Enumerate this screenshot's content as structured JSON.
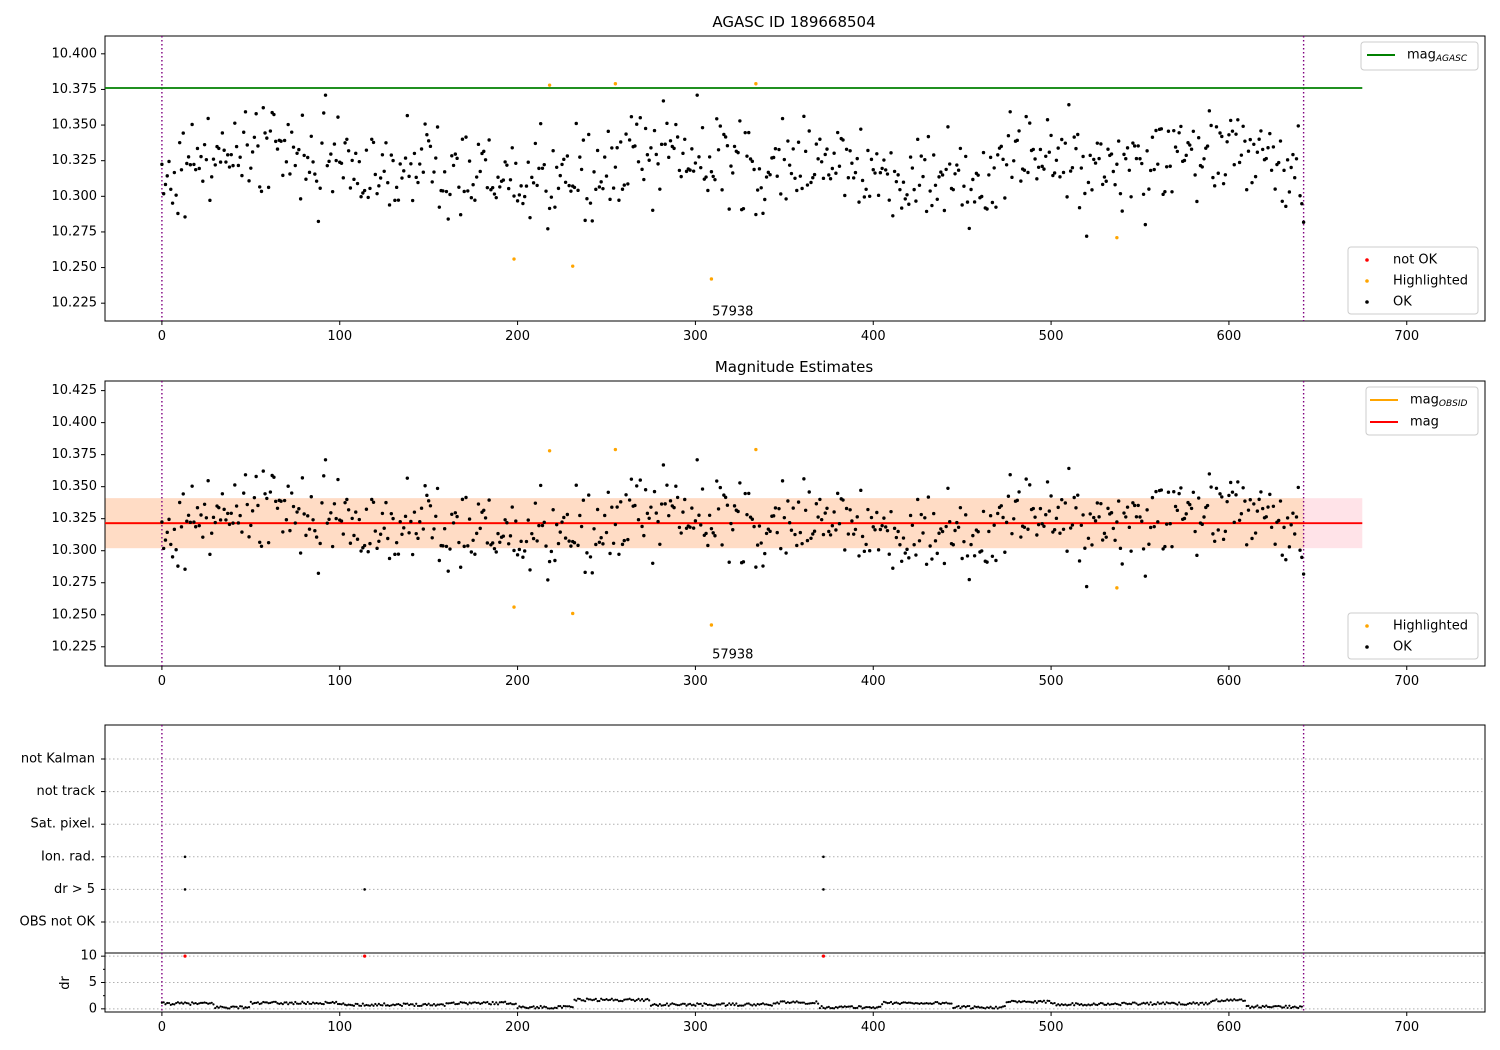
{
  "chart_data": [
    {
      "type": "scatter",
      "title": "AGASC ID 189668504",
      "xlim": [
        -32,
        744
      ],
      "ylim": [
        10.2125,
        10.4125
      ],
      "xticks": [
        0,
        100,
        200,
        300,
        400,
        500,
        600,
        700
      ],
      "yticks": [
        10.225,
        10.25,
        10.275,
        10.3,
        10.325,
        10.35,
        10.375,
        10.4
      ],
      "vlines": [
        0,
        642
      ],
      "hline": {
        "name": "mag",
        "sub": "AGASC",
        "y": 10.376,
        "x": [
          -32,
          675
        ],
        "color": "#008000"
      },
      "annotation": {
        "text": "57938",
        "x": 321,
        "y": 10.219
      },
      "highlighted": [
        {
          "x": 198,
          "y": 10.256
        },
        {
          "x": 218,
          "y": 10.378
        },
        {
          "x": 231,
          "y": 10.251
        },
        {
          "x": 255,
          "y": 10.379
        },
        {
          "x": 309,
          "y": 10.242
        },
        {
          "x": 334,
          "y": 10.379
        },
        {
          "x": 537,
          "y": 10.271
        }
      ],
      "legend_upper": [
        {
          "label": "mag",
          "sub": "AGASC",
          "color": "#008000",
          "marker": "line"
        }
      ],
      "legend_lower": [
        {
          "label": "not OK",
          "color": "#ff0000",
          "marker": "dot"
        },
        {
          "label": "Highlighted",
          "color": "#ffa500",
          "marker": "dot"
        },
        {
          "label": "OK",
          "color": "#000000",
          "marker": "dot"
        }
      ]
    },
    {
      "type": "scatter",
      "title": "Magnitude Estimates",
      "xlim": [
        -32,
        744
      ],
      "ylim": [
        10.21,
        10.4325
      ],
      "xticks": [
        0,
        100,
        200,
        300,
        400,
        500,
        600,
        700
      ],
      "yticks": [
        10.225,
        10.25,
        10.275,
        10.3,
        10.325,
        10.35,
        10.375,
        10.4,
        10.425
      ],
      "vlines": [
        0,
        642
      ],
      "mean": {
        "y": 10.3215,
        "x": [
          -32,
          675
        ],
        "color": "#ff0000"
      },
      "obsid": {
        "y": 10.3215,
        "x": [
          -32,
          642
        ],
        "color": "#ffa500"
      },
      "band_outer": {
        "y0": 10.302,
        "y1": 10.341,
        "x": [
          -32,
          675
        ],
        "color": "#ffc0cb"
      },
      "band_inner": {
        "y0": 10.302,
        "y1": 10.341,
        "x": [
          -32,
          642
        ],
        "color": "#ffdab9"
      },
      "annotation": {
        "text": "57938",
        "x": 321,
        "y": 10.219
      },
      "highlighted": [
        {
          "x": 198,
          "y": 10.256
        },
        {
          "x": 218,
          "y": 10.378
        },
        {
          "x": 231,
          "y": 10.251
        },
        {
          "x": 255,
          "y": 10.379
        },
        {
          "x": 309,
          "y": 10.242
        },
        {
          "x": 334,
          "y": 10.379
        },
        {
          "x": 537,
          "y": 10.271
        }
      ],
      "legend_upper": [
        {
          "label": "mag",
          "sub": "OBSID",
          "color": "#ffa500",
          "marker": "line"
        },
        {
          "label": "mag",
          "sub": "",
          "color": "#ff0000",
          "marker": "line"
        }
      ],
      "legend_lower": [
        {
          "label": "Highlighted",
          "color": "#ffa500",
          "marker": "dot"
        },
        {
          "label": "OK",
          "color": "#000000",
          "marker": "dot"
        }
      ]
    },
    {
      "type": "scatter",
      "title": "",
      "xlim": [
        -32,
        744
      ],
      "xticks": [
        0,
        100,
        200,
        300,
        400,
        500,
        600,
        700
      ],
      "vlines": [
        0,
        642
      ],
      "flag_labels": [
        "not Kalman",
        "not track",
        "Sat. pixel.",
        "Ion. rad.",
        "dr > 5",
        "OBS not OK"
      ],
      "flag_points": [
        {
          "flag": "Ion. rad.",
          "x": 13
        },
        {
          "flag": "Ion. rad.",
          "x": 372
        },
        {
          "flag": "dr > 5",
          "x": 13
        },
        {
          "flag": "dr > 5",
          "x": 114
        },
        {
          "flag": "dr > 5",
          "x": 372
        }
      ]
    },
    {
      "type": "scatter",
      "title": "",
      "ylabel": "dr",
      "xlim": [
        -32,
        744
      ],
      "ylim": [
        -0.6,
        10.6
      ],
      "xticks": [
        0,
        100,
        200,
        300,
        400,
        500,
        600,
        700
      ],
      "yticks": [
        0,
        5,
        10
      ],
      "vlines": [
        0,
        642
      ],
      "outliers": [
        {
          "x": 13,
          "y": 10
        },
        {
          "x": 114,
          "y": 10
        },
        {
          "x": 372,
          "y": 10
        }
      ],
      "trace": {
        "n": 642,
        "levels": [
          {
            "x": [
              0,
              30
            ],
            "y": 1.0
          },
          {
            "x": [
              30,
              50
            ],
            "y": 0.3
          },
          {
            "x": [
              50,
              100
            ],
            "y": 1.1
          },
          {
            "x": [
              100,
              160
            ],
            "y": 0.8
          },
          {
            "x": [
              160,
              200
            ],
            "y": 1.1
          },
          {
            "x": [
              200,
              232
            ],
            "y": 0.3
          },
          {
            "x": [
              232,
              275
            ],
            "y": 1.7
          },
          {
            "x": [
              275,
              345
            ],
            "y": 0.8
          },
          {
            "x": [
              345,
              370
            ],
            "y": 1.2
          },
          {
            "x": [
              370,
              405
            ],
            "y": 0.3
          },
          {
            "x": [
              405,
              445
            ],
            "y": 1.1
          },
          {
            "x": [
              445,
              475
            ],
            "y": 0.3
          },
          {
            "x": [
              475,
              500
            ],
            "y": 1.3
          },
          {
            "x": [
              500,
              540
            ],
            "y": 0.9
          },
          {
            "x": [
              540,
              590
            ],
            "y": 1.0
          },
          {
            "x": [
              590,
              610
            ],
            "y": 1.6
          },
          {
            "x": [
              610,
              642
            ],
            "y": 0.4
          }
        ]
      }
    }
  ]
}
